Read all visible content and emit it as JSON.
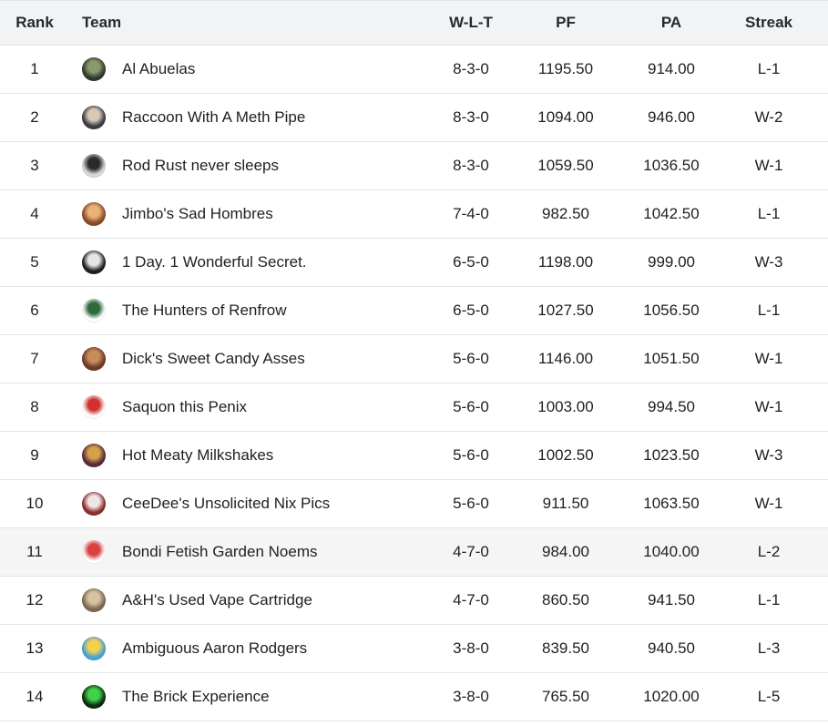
{
  "headers": {
    "rank": "Rank",
    "team": "Team",
    "wlt": "W-L-T",
    "pf": "PF",
    "pa": "PA",
    "streak": "Streak"
  },
  "rows": [
    {
      "rank": "1",
      "team": "Al Abuelas",
      "wlt": "8-3-0",
      "pf": "1195.50",
      "pa": "914.00",
      "streak": "L-1",
      "avatar_icon": "team-logo-icon",
      "avatar_colors": [
        "#2f3a2e",
        "#8a9a6b"
      ]
    },
    {
      "rank": "2",
      "team": "Raccoon With A Meth Pipe",
      "wlt": "8-3-0",
      "pf": "1094.00",
      "pa": "946.00",
      "streak": "W-2",
      "avatar_icon": "team-logo-icon",
      "avatar_colors": [
        "#3b3b44",
        "#d8c8b8"
      ]
    },
    {
      "rank": "3",
      "team": "Rod Rust never sleeps",
      "wlt": "8-3-0",
      "pf": "1059.50",
      "pa": "1036.50",
      "streak": "W-1",
      "avatar_icon": "team-logo-icon",
      "avatar_colors": [
        "#d9d9d9",
        "#2a2a2a"
      ]
    },
    {
      "rank": "4",
      "team": "Jimbo's Sad Hombres",
      "wlt": "7-4-0",
      "pf": "982.50",
      "pa": "1042.50",
      "streak": "L-1",
      "avatar_icon": "team-logo-icon",
      "avatar_colors": [
        "#8a4b2a",
        "#e8b27a"
      ]
    },
    {
      "rank": "5",
      "team": "1 Day. 1 Wonderful Secret.",
      "wlt": "6-5-0",
      "pf": "1198.00",
      "pa": "999.00",
      "streak": "W-3",
      "avatar_icon": "team-logo-icon",
      "avatar_colors": [
        "#1e1e22",
        "#e6e6e6"
      ]
    },
    {
      "rank": "6",
      "team": "The Hunters of Renfrow",
      "wlt": "6-5-0",
      "pf": "1027.50",
      "pa": "1056.50",
      "streak": "L-1",
      "avatar_icon": "team-logo-icon",
      "avatar_colors": [
        "#ffffff",
        "#2f6b3a"
      ]
    },
    {
      "rank": "7",
      "team": "Dick's Sweet Candy Asses",
      "wlt": "5-6-0",
      "pf": "1146.00",
      "pa": "1051.50",
      "streak": "W-1",
      "avatar_icon": "team-logo-icon",
      "avatar_colors": [
        "#6b3a2a",
        "#c98b5a"
      ]
    },
    {
      "rank": "8",
      "team": "Saquon this Penix",
      "wlt": "5-6-0",
      "pf": "1003.00",
      "pa": "994.50",
      "streak": "W-1",
      "avatar_icon": "team-logo-icon",
      "avatar_colors": [
        "#ffffff",
        "#d0312d"
      ]
    },
    {
      "rank": "9",
      "team": "Hot Meaty Milkshakes",
      "wlt": "5-6-0",
      "pf": "1002.50",
      "pa": "1023.50",
      "streak": "W-3",
      "avatar_icon": "team-logo-icon",
      "avatar_colors": [
        "#5a2a3a",
        "#d4a24a"
      ]
    },
    {
      "rank": "10",
      "team": "CeeDee's Unsolicited Nix Pics",
      "wlt": "5-6-0",
      "pf": "911.50",
      "pa": "1063.50",
      "streak": "W-1",
      "avatar_icon": "team-logo-icon",
      "avatar_colors": [
        "#8b2e2e",
        "#f0e6e6"
      ]
    },
    {
      "rank": "11",
      "team": "Bondi Fetish Garden Noems",
      "wlt": "4-7-0",
      "pf": "984.00",
      "pa": "1040.00",
      "streak": "L-2",
      "avatar_icon": "team-logo-icon",
      "avatar_colors": [
        "#ffffff",
        "#d94040"
      ],
      "highlight": true
    },
    {
      "rank": "12",
      "team": "A&H's Used Vape Cartridge",
      "wlt": "4-7-0",
      "pf": "860.50",
      "pa": "941.50",
      "streak": "L-1",
      "avatar_icon": "team-logo-icon",
      "avatar_colors": [
        "#7a6a52",
        "#d8c3a0"
      ]
    },
    {
      "rank": "13",
      "team": "Ambiguous Aaron Rodgers",
      "wlt": "3-8-0",
      "pf": "839.50",
      "pa": "940.50",
      "streak": "L-3",
      "avatar_icon": "team-logo-icon",
      "avatar_colors": [
        "#4aa0d8",
        "#f2d24a"
      ]
    },
    {
      "rank": "14",
      "team": "The Brick Experience",
      "wlt": "3-8-0",
      "pf": "765.50",
      "pa": "1020.00",
      "streak": "L-5",
      "avatar_icon": "team-logo-icon",
      "avatar_colors": [
        "#0f2a12",
        "#3fd14a"
      ]
    }
  ]
}
